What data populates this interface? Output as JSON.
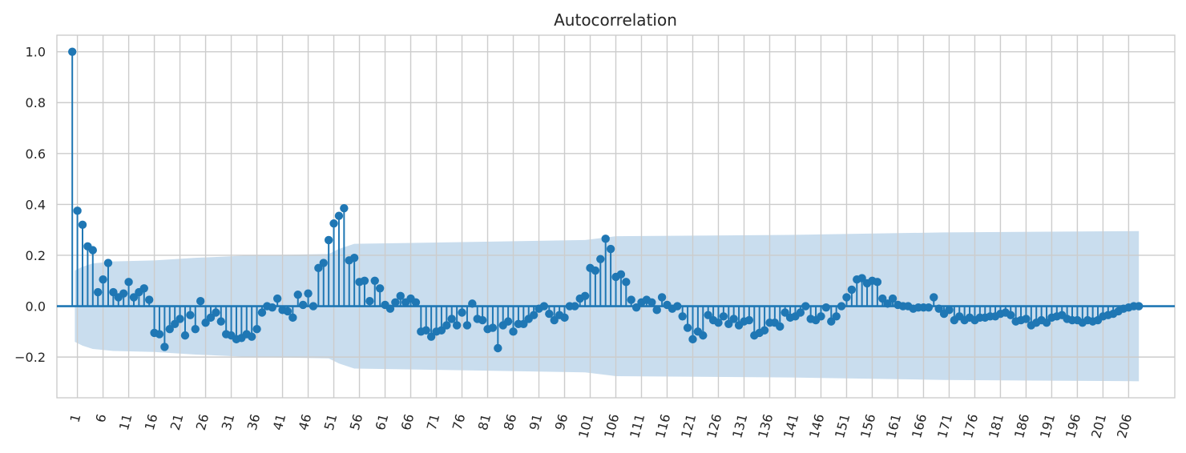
{
  "chart_data": {
    "type": "stem",
    "title": "Autocorrelation",
    "xlabel": "",
    "ylabel": "",
    "xlim": [
      -3,
      215
    ],
    "ylim": [
      -0.36,
      1.065
    ],
    "y_ticks": [
      -0.2,
      0.0,
      0.2,
      0.4,
      0.6,
      0.8,
      1.0
    ],
    "y_tick_labels": [
      "−0.2",
      "0.0",
      "0.2",
      "0.4",
      "0.6",
      "0.8",
      "1.0"
    ],
    "x_ticks": [
      1,
      6,
      11,
      16,
      21,
      26,
      31,
      36,
      41,
      46,
      51,
      56,
      61,
      66,
      71,
      76,
      81,
      86,
      91,
      96,
      101,
      106,
      111,
      116,
      121,
      126,
      131,
      136,
      141,
      146,
      151,
      156,
      161,
      166,
      171,
      176,
      181,
      186,
      191,
      196,
      201,
      206
    ],
    "x_tick_labels": [
      "1",
      "6",
      "11",
      "16",
      "21",
      "26",
      "31",
      "36",
      "41",
      "46",
      "51",
      "56",
      "61",
      "66",
      "71",
      "76",
      "81",
      "86",
      "91",
      "96",
      "101",
      "106",
      "111",
      "116",
      "121",
      "126",
      "131",
      "136",
      "141",
      "146",
      "151",
      "156",
      "161",
      "166",
      "171",
      "176",
      "181",
      "186",
      "191",
      "196",
      "201",
      "206"
    ],
    "grid": true,
    "colors": {
      "stem": "#1f77b4",
      "band": "#c6dbed",
      "grid": "#cccccc",
      "baseline": "#1f77b4"
    },
    "lags_start": 0,
    "values": [
      1.0,
      0.375,
      0.32,
      0.235,
      0.22,
      0.055,
      0.105,
      0.17,
      0.055,
      0.035,
      0.05,
      0.095,
      0.035,
      0.055,
      0.07,
      0.025,
      -0.105,
      -0.11,
      -0.16,
      -0.09,
      -0.07,
      -0.05,
      -0.115,
      -0.035,
      -0.09,
      0.02,
      -0.065,
      -0.045,
      -0.025,
      -0.06,
      -0.11,
      -0.115,
      -0.13,
      -0.125,
      -0.11,
      -0.12,
      -0.09,
      -0.025,
      0.0,
      -0.005,
      0.03,
      -0.015,
      -0.02,
      -0.045,
      0.045,
      0.005,
      0.05,
      0.0,
      0.15,
      0.17,
      0.26,
      0.325,
      0.355,
      0.385,
      0.18,
      0.19,
      0.095,
      0.1,
      0.02,
      0.1,
      0.07,
      0.005,
      -0.01,
      0.015,
      0.04,
      0.015,
      0.03,
      0.015,
      -0.1,
      -0.095,
      -0.12,
      -0.1,
      -0.095,
      -0.075,
      -0.05,
      -0.075,
      -0.025,
      -0.075,
      0.01,
      -0.05,
      -0.055,
      -0.09,
      -0.085,
      -0.165,
      -0.075,
      -0.06,
      -0.1,
      -0.07,
      -0.07,
      -0.05,
      -0.035,
      -0.01,
      0.0,
      -0.03,
      -0.055,
      -0.035,
      -0.045,
      0.0,
      0.0,
      0.03,
      0.04,
      0.15,
      0.14,
      0.185,
      0.265,
      0.225,
      0.115,
      0.125,
      0.095,
      0.025,
      -0.005,
      0.015,
      0.025,
      0.015,
      -0.015,
      0.035,
      0.005,
      -0.01,
      0.0,
      -0.04,
      -0.085,
      -0.13,
      -0.1,
      -0.115,
      -0.035,
      -0.055,
      -0.065,
      -0.04,
      -0.07,
      -0.05,
      -0.075,
      -0.06,
      -0.055,
      -0.115,
      -0.105,
      -0.095,
      -0.065,
      -0.065,
      -0.08,
      -0.025,
      -0.045,
      -0.04,
      -0.025,
      0.0,
      -0.05,
      -0.055,
      -0.04,
      -0.005,
      -0.06,
      -0.04,
      0.0,
      0.035,
      0.065,
      0.105,
      0.11,
      0.09,
      0.1,
      0.095,
      0.03,
      0.01,
      0.03,
      0.005,
      0.0,
      0.0,
      -0.01,
      -0.005,
      -0.005,
      -0.005,
      0.035,
      -0.01,
      -0.03,
      -0.015,
      -0.055,
      -0.04,
      -0.055,
      -0.045,
      -0.055,
      -0.045,
      -0.045,
      -0.04,
      -0.04,
      -0.03,
      -0.025,
      -0.035,
      -0.06,
      -0.055,
      -0.05,
      -0.075,
      -0.065,
      -0.055,
      -0.065,
      -0.045,
      -0.04,
      -0.035,
      -0.05,
      -0.055,
      -0.055,
      -0.065,
      -0.055,
      -0.06,
      -0.055,
      -0.04,
      -0.035,
      -0.03,
      -0.02,
      -0.01,
      -0.005,
      0.0,
      0.0
    ],
    "confidence_band": [
      {
        "lag": 0.5,
        "upper": 0.14
      },
      {
        "lag": 2,
        "upper": 0.155
      },
      {
        "lag": 4,
        "upper": 0.168
      },
      {
        "lag": 8,
        "upper": 0.176
      },
      {
        "lag": 16,
        "upper": 0.18
      },
      {
        "lag": 24,
        "upper": 0.19
      },
      {
        "lag": 35,
        "upper": 0.2
      },
      {
        "lag": 50,
        "upper": 0.205
      },
      {
        "lag": 52,
        "upper": 0.225
      },
      {
        "lag": 55,
        "upper": 0.245
      },
      {
        "lag": 70,
        "upper": 0.25
      },
      {
        "lag": 100,
        "upper": 0.26
      },
      {
        "lag": 106,
        "upper": 0.275
      },
      {
        "lag": 140,
        "upper": 0.28
      },
      {
        "lag": 170,
        "upper": 0.29
      },
      {
        "lag": 208,
        "upper": 0.295
      }
    ]
  }
}
